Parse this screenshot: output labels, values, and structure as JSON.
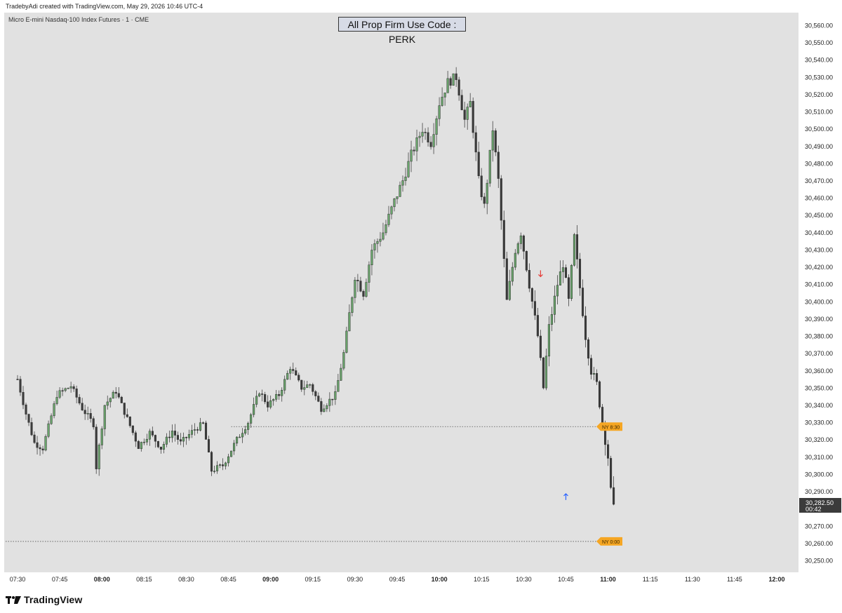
{
  "header": {
    "attribution": "TradebyAdi created with TradingView.com, May 29, 2026 10:46 UTC-4",
    "symbol": "Micro E-mini Nasdaq-100 Index Futures · 1 · CME"
  },
  "banner": {
    "text": "All Prop Firm Use Code : PERK"
  },
  "branding": {
    "logo_text": "TradingView"
  },
  "chart_data": {
    "type": "candlestick",
    "symbol": "Micro E-mini Nasdaq-100 Index Futures",
    "interval": "1",
    "exchange": "CME",
    "time_axis": {
      "labels": [
        "07:30",
        "07:45",
        "08:00",
        "08:15",
        "08:30",
        "08:45",
        "09:00",
        "09:15",
        "09:30",
        "09:45",
        "10:00",
        "10:15",
        "10:30",
        "10:45",
        "11:00",
        "11:15",
        "11:30",
        "11:45",
        "12:00"
      ],
      "bold_labels": [
        "08:00",
        "09:00",
        "10:00",
        "11:00",
        "12:00"
      ],
      "minute_range": [
        450,
        725
      ]
    },
    "price_axis": {
      "labels": [
        "30,560.00",
        "30,550.00",
        "30,540.00",
        "30,530.00",
        "30,520.00",
        "30,510.00",
        "30,500.00",
        "30,490.00",
        "30,480.00",
        "30,470.00",
        "30,460.00",
        "30,450.00",
        "30,440.00",
        "30,430.00",
        "30,420.00",
        "30,410.00",
        "30,400.00",
        "30,390.00",
        "30,380.00",
        "30,370.00",
        "30,360.00",
        "30,350.00",
        "30,340.00",
        "30,330.00",
        "30,320.00",
        "30,310.00",
        "30,300.00",
        "30,290.00",
        "30,280.00",
        "30,270.00",
        "30,260.00",
        "30,250.00"
      ],
      "ylim": [
        30245,
        30565
      ]
    },
    "current_price": {
      "value": 30282.5,
      "label": "30,282.50",
      "countdown": "00:42"
    },
    "levels": [
      {
        "label": "NY 8:30",
        "price": 30327.5,
        "color": "#f5a623"
      },
      {
        "label": "NY 0:00",
        "price": 30261,
        "color": "#f5a623"
      }
    ],
    "markers": [
      {
        "type": "down-arrow",
        "time": "10:36",
        "price": 30416,
        "color": "#e53935"
      },
      {
        "type": "up-arrow",
        "time": "10:45",
        "price": 30287,
        "color": "#2962ff"
      }
    ],
    "colors": {
      "up": "#6aa66c",
      "down": "#3c3c3c",
      "wick": "#444444"
    },
    "waypoints": [
      {
        "t": 450,
        "p": 30355
      },
      {
        "t": 453,
        "p": 30335
      },
      {
        "t": 456,
        "p": 30318
      },
      {
        "t": 459,
        "p": 30315
      },
      {
        "t": 464,
        "p": 30346
      },
      {
        "t": 469,
        "p": 30351
      },
      {
        "t": 473,
        "p": 30338
      },
      {
        "t": 477,
        "p": 30329
      },
      {
        "t": 478,
        "p": 30304
      },
      {
        "t": 481,
        "p": 30340
      },
      {
        "t": 485,
        "p": 30348
      },
      {
        "t": 490,
        "p": 30328
      },
      {
        "t": 493,
        "p": 30316
      },
      {
        "t": 497,
        "p": 30324
      },
      {
        "t": 501,
        "p": 30315
      },
      {
        "t": 505,
        "p": 30325
      },
      {
        "t": 508,
        "p": 30318
      },
      {
        "t": 513,
        "p": 30326
      },
      {
        "t": 516,
        "p": 30329
      },
      {
        "t": 519,
        "p": 30302
      },
      {
        "t": 523,
        "p": 30305
      },
      {
        "t": 528,
        "p": 30320
      },
      {
        "t": 532,
        "p": 30330
      },
      {
        "t": 536,
        "p": 30348
      },
      {
        "t": 539,
        "p": 30340
      },
      {
        "t": 543,
        "p": 30346
      },
      {
        "t": 547,
        "p": 30362
      },
      {
        "t": 551,
        "p": 30350
      },
      {
        "t": 554,
        "p": 30352
      },
      {
        "t": 558,
        "p": 30338
      },
      {
        "t": 563,
        "p": 30346
      },
      {
        "t": 566,
        "p": 30370
      },
      {
        "t": 570,
        "p": 30415
      },
      {
        "t": 573,
        "p": 30405
      },
      {
        "t": 576,
        "p": 30430
      },
      {
        "t": 580,
        "p": 30440
      },
      {
        "t": 584,
        "p": 30458
      },
      {
        "t": 587,
        "p": 30470
      },
      {
        "t": 590,
        "p": 30485
      },
      {
        "t": 594,
        "p": 30500
      },
      {
        "t": 597,
        "p": 30492
      },
      {
        "t": 600,
        "p": 30515
      },
      {
        "t": 603,
        "p": 30527
      },
      {
        "t": 606,
        "p": 30530
      },
      {
        "t": 609,
        "p": 30505
      },
      {
        "t": 611,
        "p": 30515
      },
      {
        "t": 614,
        "p": 30470
      },
      {
        "t": 616,
        "p": 30455
      },
      {
        "t": 619,
        "p": 30500
      },
      {
        "t": 621,
        "p": 30470
      },
      {
        "t": 624,
        "p": 30400
      },
      {
        "t": 627,
        "p": 30430
      },
      {
        "t": 629,
        "p": 30440
      },
      {
        "t": 632,
        "p": 30410
      },
      {
        "t": 635,
        "p": 30380
      },
      {
        "t": 637,
        "p": 30350
      },
      {
        "t": 639,
        "p": 30385
      },
      {
        "t": 642,
        "p": 30410
      },
      {
        "t": 644,
        "p": 30422
      },
      {
        "t": 646,
        "p": 30400
      },
      {
        "t": 648,
        "p": 30437
      },
      {
        "t": 650,
        "p": 30408
      },
      {
        "t": 652,
        "p": 30380
      },
      {
        "t": 654,
        "p": 30360
      },
      {
        "t": 656,
        "p": 30352
      },
      {
        "t": 658,
        "p": 30330
      },
      {
        "t": 660,
        "p": 30310
      },
      {
        "t": 661,
        "p": 30290
      },
      {
        "t": 662,
        "p": 30282.5
      }
    ]
  }
}
